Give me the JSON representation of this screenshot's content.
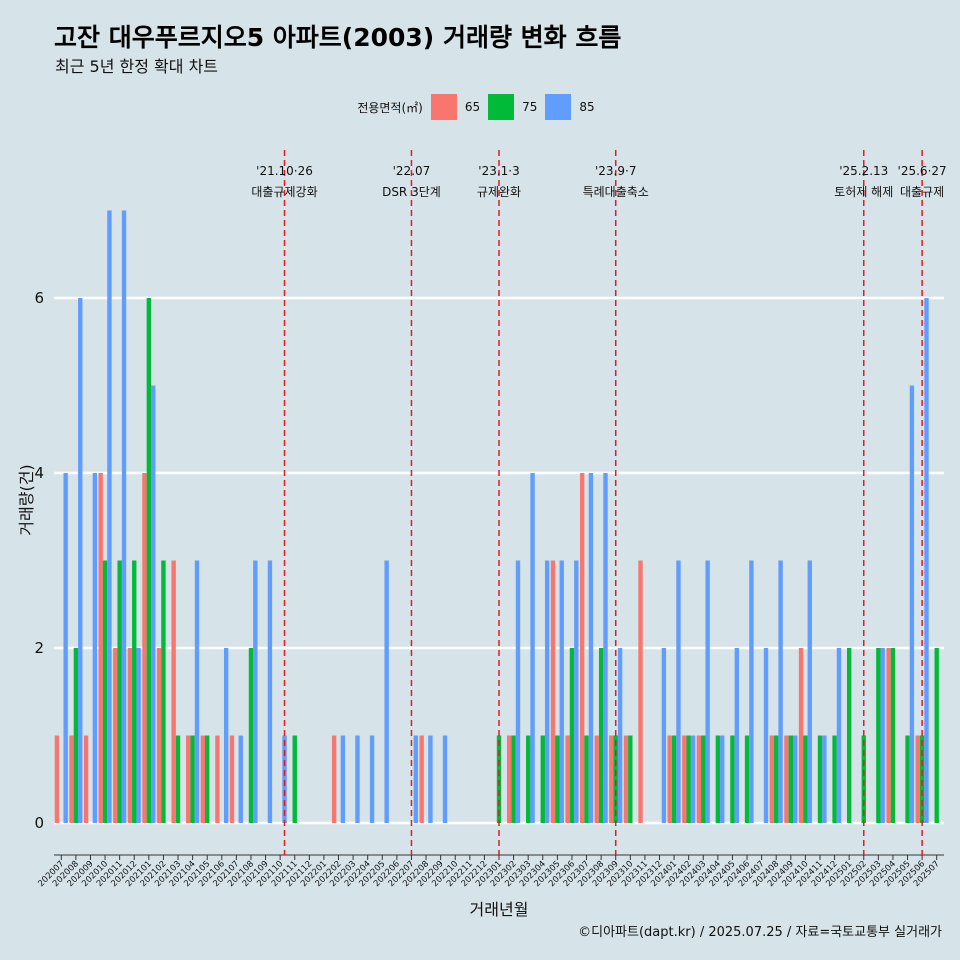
{
  "header": {
    "title": "고잔 대우푸르지오5 아파트(2003) 거래량 변화 흐름",
    "subtitle": "최근 5년 한정 확대 차트"
  },
  "legend": {
    "title": "전용면적(㎡)",
    "items": [
      {
        "label": "65",
        "color": "#f8766d"
      },
      {
        "label": "75",
        "color": "#00ba38"
      },
      {
        "label": "85",
        "color": "#619cff"
      }
    ]
  },
  "caption": "©디아파트(dapt.kr) / 2025.07.25 / 자료=국토교통부 실거래가",
  "chart_data": {
    "type": "bar",
    "xlabel": "거래년월",
    "ylabel": "거래량(건)",
    "ylim": [
      0,
      7
    ],
    "yticks": [
      0,
      2,
      4,
      6
    ],
    "categories": [
      "202007",
      "202008",
      "202009",
      "202010",
      "202011",
      "202012",
      "202101",
      "202102",
      "202103",
      "202104",
      "202105",
      "202106",
      "202107",
      "202108",
      "202109",
      "202110",
      "202111",
      "202112",
      "202201",
      "202202",
      "202203",
      "202204",
      "202205",
      "202206",
      "202207",
      "202208",
      "202209",
      "202210",
      "202211",
      "202212",
      "202301",
      "202302",
      "202303",
      "202304",
      "202305",
      "202306",
      "202307",
      "202308",
      "202309",
      "202310",
      "202311",
      "202312",
      "202401",
      "202402",
      "202403",
      "202404",
      "202405",
      "202406",
      "202407",
      "202408",
      "202409",
      "202410",
      "202411",
      "202412",
      "202501",
      "202502",
      "202503",
      "202504",
      "202505",
      "202506",
      "202507"
    ],
    "series": [
      {
        "name": "65",
        "color": "#f8766d",
        "values": [
          1,
          1,
          1,
          4,
          2,
          2,
          4,
          2,
          3,
          1,
          1,
          1,
          1,
          0,
          0,
          0,
          0,
          0,
          0,
          1,
          0,
          0,
          0,
          0,
          0,
          1,
          0,
          0,
          0,
          0,
          0,
          1,
          0,
          0,
          3,
          1,
          4,
          1,
          1,
          1,
          3,
          0,
          1,
          1,
          1,
          0,
          0,
          0,
          0,
          1,
          1,
          2,
          0,
          0,
          0,
          0,
          0,
          2,
          0,
          1,
          0
        ]
      },
      {
        "name": "75",
        "color": "#00ba38",
        "values": [
          0,
          2,
          0,
          3,
          3,
          3,
          6,
          3,
          1,
          1,
          1,
          0,
          0,
          2,
          0,
          0,
          1,
          0,
          0,
          0,
          0,
          0,
          0,
          0,
          0,
          0,
          0,
          0,
          0,
          0,
          1,
          1,
          1,
          1,
          1,
          2,
          1,
          2,
          1,
          1,
          0,
          0,
          1,
          1,
          1,
          1,
          1,
          1,
          0,
          1,
          1,
          1,
          1,
          1,
          2,
          1,
          2,
          2,
          1,
          1,
          2
        ]
      },
      {
        "name": "85",
        "color": "#619cff",
        "values": [
          4,
          6,
          4,
          7,
          7,
          2,
          5,
          0,
          0,
          3,
          0,
          2,
          1,
          3,
          3,
          1,
          0,
          0,
          0,
          1,
          1,
          1,
          3,
          0,
          1,
          1,
          1,
          0,
          0,
          0,
          0,
          3,
          4,
          3,
          3,
          3,
          4,
          4,
          2,
          0,
          0,
          2,
          3,
          1,
          3,
          1,
          2,
          3,
          2,
          3,
          1,
          3,
          1,
          2,
          0,
          0,
          2,
          0,
          5,
          6,
          0
        ]
      }
    ],
    "annotations": [
      {
        "date_line1": "'21.10·26",
        "date_line2": "대출규제강화",
        "at_index": 15.3
      },
      {
        "date_line1": "'22.07",
        "date_line2": "DSR 3단계",
        "at_index": 24
      },
      {
        "date_line1": "'23.1·3",
        "date_line2": "규제완화",
        "at_index": 30
      },
      {
        "date_line1": "'23.9·7",
        "date_line2": "특례대출축소",
        "at_index": 38
      },
      {
        "date_line1": "'25.2.13",
        "date_line2": "토허제 해제",
        "at_index": 55
      },
      {
        "date_line1": "'25.6·27",
        "date_line2": "대출규제",
        "at_index": 59
      }
    ],
    "grid": true,
    "legend_position": "top"
  }
}
